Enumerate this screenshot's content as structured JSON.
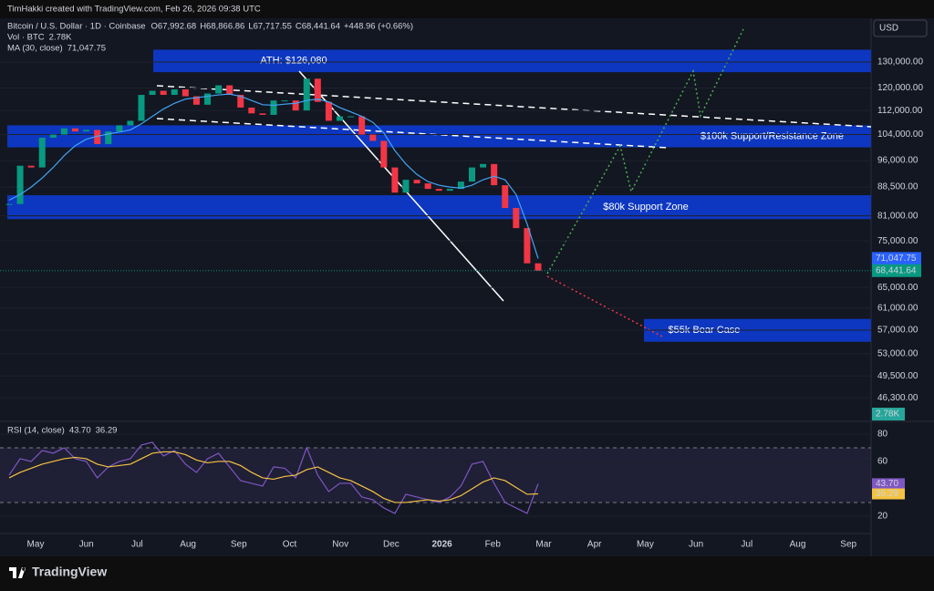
{
  "header": {
    "credit": "TimHakki created with TradingView.com, Feb 26, 2026 09:38 UTC",
    "symbol": "Bitcoin / U.S. Dollar · 1D · Coinbase",
    "ohlc": [
      "O67,992.68",
      "H68,866.86",
      "L67,717.55",
      "C68,441.64",
      "+448.96 (+0.66%)"
    ],
    "volume_label": "Vol · BTC",
    "volume_value": "2.78K",
    "ma_label": "MA (30, close)",
    "ma_value": "71,047.75",
    "currency": "USD",
    "brand": "TradingView"
  },
  "chart_data": [
    {
      "type": "candlestick",
      "log_scale": true,
      "ylim": [
        43300,
        142600
      ],
      "yticks": [
        {
          "value": 130000,
          "label": "130,000.00"
        },
        {
          "value": 120000,
          "label": "120,000.00"
        },
        {
          "value": 112000,
          "label": "112,000.00"
        },
        {
          "value": 104000,
          "label": "104,000.00"
        },
        {
          "value": 96000,
          "label": "96,000.00"
        },
        {
          "value": 88500,
          "label": "88,500.00"
        },
        {
          "value": 81000,
          "label": "81,000.00"
        },
        {
          "value": 75000,
          "label": "75,000.00"
        },
        {
          "value": 65000,
          "label": "65,000.00"
        },
        {
          "value": 61000,
          "label": "61,000.00"
        },
        {
          "value": 57000,
          "label": "57,000.00"
        },
        {
          "value": 53000,
          "label": "53,000.00"
        },
        {
          "value": 49500,
          "label": "49,500.00"
        },
        {
          "value": 46300,
          "label": "46,300.00"
        }
      ],
      "close": [
        84000,
        94500,
        94000,
        103000,
        104000,
        106000,
        105000,
        105500,
        101000,
        105000,
        107000,
        108500,
        117500,
        119000,
        117500,
        119500,
        117000,
        114000,
        118000,
        121000,
        117500,
        113000,
        111000,
        110500,
        115500,
        115500,
        112000,
        123500,
        115000,
        108500,
        110000,
        110000,
        104000,
        102000,
        94000,
        87000,
        90500,
        89500,
        88000,
        87500,
        88000,
        90000,
        94000,
        95000,
        89000,
        83000,
        78000,
        70000,
        68441.64
      ],
      "ma": [
        85000,
        86500,
        88500,
        91000,
        94000,
        97500,
        100500,
        102500,
        103500,
        104200,
        104800,
        105500,
        107500,
        110000,
        112500,
        114500,
        116000,
        116500,
        117000,
        117500,
        117800,
        117000,
        115500,
        114000,
        113800,
        114200,
        114500,
        115500,
        116000,
        115000,
        113000,
        111500,
        110000,
        108000,
        104500,
        99000,
        95000,
        92000,
        90000,
        89000,
        88500,
        88200,
        89000,
        90500,
        91500,
        90500,
        86500,
        79000,
        71047.75
      ],
      "up_color": "#089981",
      "down_color": "#f23645",
      "ma_color": "#42a5f5",
      "zones": [
        {
          "label": "ATH: $126,080",
          "range": [
            126000,
            135000
          ]
        },
        {
          "label": "$100k Support/Resistance Zone",
          "range": [
            100000,
            107000
          ]
        },
        {
          "label": "$80k Support Zone",
          "range": [
            80200,
            86300
          ]
        },
        {
          "label": "$55k Bear Case",
          "range": [
            55000,
            59000
          ]
        }
      ],
      "zone_color": "#0d3bd1",
      "price_labels": [
        {
          "value": 71047.75,
          "label": "71,047.75",
          "color": "#2962ff"
        },
        {
          "value": 68441.64,
          "label": "68,441.64",
          "color": "#089981"
        }
      ],
      "time_labels": [
        "May",
        "Jun",
        "Jul",
        "Aug",
        "Sep",
        "Oct",
        "Nov",
        "Dec",
        "2026",
        "Feb",
        "Mar",
        "Apr",
        "May",
        "Jun",
        "Jul",
        "Aug",
        "Sep"
      ]
    },
    {
      "type": "line",
      "title": "RSI (14, close)",
      "ylim": [
        9.3,
        87.3
      ],
      "yticks": [
        80,
        60,
        20
      ],
      "bands": [
        30,
        70
      ],
      "values": [
        50,
        62,
        60,
        68,
        66,
        70,
        62,
        60,
        48,
        56,
        60,
        62,
        72,
        74,
        64,
        68,
        58,
        52,
        62,
        66,
        56,
        46,
        44,
        42,
        56,
        55,
        48,
        70,
        50,
        38,
        44,
        44,
        34,
        32,
        26,
        22,
        36,
        34,
        32,
        30,
        34,
        42,
        58,
        60,
        44,
        30,
        26,
        22,
        43.7
      ],
      "ma_values": [
        48,
        52,
        55,
        58,
        60,
        62,
        63,
        62,
        58,
        56,
        57,
        58,
        62,
        66,
        67,
        67,
        65,
        61,
        59,
        60,
        60,
        57,
        52,
        48,
        47,
        49,
        50,
        54,
        56,
        52,
        48,
        46,
        42,
        38,
        33,
        30,
        30,
        31,
        32,
        31,
        32,
        35,
        40,
        45,
        48,
        46,
        41,
        36,
        36.29
      ],
      "color": "#7e57c2",
      "ma_color": "#f5c342",
      "last_labels": [
        {
          "value": 43.7,
          "label": "43.70",
          "color": "#7e57c2"
        },
        {
          "value": 36.29,
          "label": "36.29",
          "color": "#f5c342"
        }
      ]
    }
  ]
}
